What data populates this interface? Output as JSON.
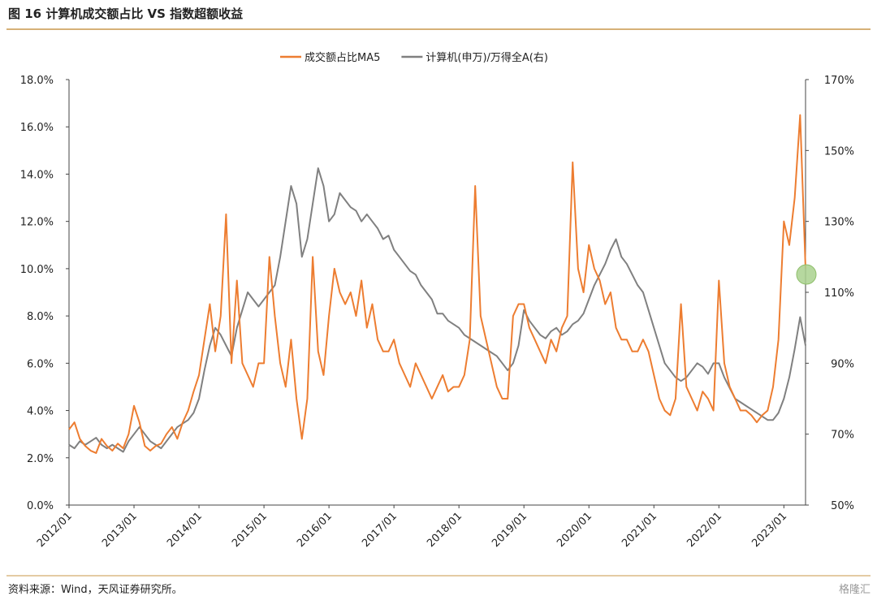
{
  "chart_data": {
    "type": "line",
    "title": "图 16 计算机成交额占比 VS 指数超额收益",
    "source": "资料来源：Wind，天风证券研究所。",
    "watermark": "格隆汇",
    "categories": [
      "2012/01",
      null,
      null,
      null,
      null,
      null,
      null,
      null,
      null,
      null,
      null,
      null,
      "2013/01",
      null,
      null,
      null,
      null,
      null,
      null,
      null,
      null,
      null,
      null,
      null,
      "2014/01",
      null,
      null,
      null,
      null,
      null,
      null,
      null,
      null,
      null,
      null,
      null,
      "2015/01",
      null,
      null,
      null,
      null,
      null,
      null,
      null,
      null,
      null,
      null,
      null,
      "2016/01",
      null,
      null,
      null,
      null,
      null,
      null,
      null,
      null,
      null,
      null,
      null,
      "2017/01",
      null,
      null,
      null,
      null,
      null,
      null,
      null,
      null,
      null,
      null,
      null,
      "2018/01",
      null,
      null,
      null,
      null,
      null,
      null,
      null,
      null,
      null,
      null,
      null,
      "2019/01",
      null,
      null,
      null,
      null,
      null,
      null,
      null,
      null,
      null,
      null,
      null,
      "2020/01",
      null,
      null,
      null,
      null,
      null,
      null,
      null,
      null,
      null,
      null,
      null,
      "2021/01",
      null,
      null,
      null,
      null,
      null,
      null,
      null,
      null,
      null,
      null,
      null,
      "2022/01",
      null,
      null,
      null,
      null,
      null,
      null,
      null,
      null,
      null,
      null,
      null,
      "2023/01",
      null,
      null,
      null,
      null
    ],
    "series": [
      {
        "name": "成交额占比MA5",
        "color": "#ed7d31",
        "values": [
          3.2,
          3.5,
          2.8,
          2.5,
          2.3,
          2.2,
          2.8,
          2.5,
          2.3,
          2.6,
          2.4,
          3.0,
          4.2,
          3.5,
          2.5,
          2.3,
          2.5,
          2.6,
          3.0,
          3.3,
          2.8,
          3.5,
          4.0,
          4.8,
          5.5,
          7.0,
          8.5,
          6.5,
          8.0,
          12.3,
          6.0,
          9.5,
          6.0,
          5.5,
          5.0,
          6.0,
          6.0,
          10.5,
          8.0,
          6.0,
          5.0,
          7.0,
          4.5,
          2.8,
          4.5,
          10.5,
          6.5,
          5.5,
          8.0,
          10.0,
          9.0,
          8.5,
          9.0,
          8.0,
          9.5,
          7.5,
          8.5,
          7.0,
          6.5,
          6.5,
          7.0,
          6.0,
          5.5,
          5.0,
          6.0,
          5.5,
          5.0,
          4.5,
          5.0,
          5.5,
          4.8,
          5.0,
          5.0,
          5.5,
          7.0,
          13.5,
          8.0,
          7.0,
          6.0,
          5.0,
          4.5,
          4.5,
          8.0,
          8.5,
          8.5,
          7.5,
          7.0,
          6.5,
          6.0,
          7.0,
          6.5,
          7.5,
          8.0,
          14.5,
          10.0,
          9.0,
          11.0,
          10.0,
          9.5,
          8.5,
          9.0,
          7.5,
          7.0,
          7.0,
          6.5,
          6.5,
          7.0,
          6.5,
          5.5,
          4.5,
          4.0,
          3.8,
          4.5,
          8.5,
          5.0,
          4.5,
          4.0,
          4.8,
          4.5,
          4.0,
          9.5,
          6.0,
          5.0,
          4.5,
          4.0,
          4.0,
          3.8,
          3.5,
          3.8,
          4.0,
          5.0,
          7.0,
          12.0,
          11.0,
          13.0,
          16.5,
          10.0
        ]
      },
      {
        "name": "计算机(申万)/万得全A(右)",
        "color": "#808080",
        "axis": "y2",
        "values": [
          67,
          66,
          68,
          67,
          68,
          69,
          67,
          66,
          67,
          66,
          65,
          68,
          70,
          72,
          70,
          68,
          67,
          66,
          68,
          70,
          72,
          73,
          74,
          76,
          80,
          88,
          95,
          100,
          98,
          95,
          92,
          100,
          105,
          110,
          108,
          106,
          108,
          110,
          112,
          120,
          130,
          140,
          135,
          120,
          125,
          135,
          145,
          140,
          130,
          132,
          138,
          136,
          134,
          133,
          130,
          132,
          130,
          128,
          125,
          126,
          122,
          120,
          118,
          116,
          115,
          112,
          110,
          108,
          104,
          104,
          102,
          101,
          100,
          98,
          97,
          96,
          95,
          94,
          93,
          92,
          90,
          88,
          90,
          95,
          105,
          102,
          100,
          98,
          97,
          99,
          100,
          98,
          99,
          101,
          102,
          104,
          108,
          112,
          115,
          118,
          122,
          125,
          120,
          118,
          115,
          112,
          110,
          105,
          100,
          95,
          90,
          88,
          86,
          85,
          86,
          88,
          90,
          89,
          87,
          90,
          90,
          86,
          83,
          80,
          79,
          78,
          77,
          76,
          75,
          74,
          74,
          76,
          80,
          86,
          94,
          103,
          95
        ]
      }
    ],
    "ylim": [
      0,
      18
    ],
    "yticks": [
      {
        "value": 0,
        "label": "0.0%"
      },
      {
        "value": 2,
        "label": "2.0%"
      },
      {
        "value": 4,
        "label": "4.0%"
      },
      {
        "value": 6,
        "label": "6.0%"
      },
      {
        "value": 8,
        "label": "8.0%"
      },
      {
        "value": 10,
        "label": "10.0%"
      },
      {
        "value": 12,
        "label": "12.0%"
      },
      {
        "value": 14,
        "label": "14.0%"
      },
      {
        "value": 16,
        "label": "16.0%"
      },
      {
        "value": 18,
        "label": "18.0%"
      }
    ],
    "y2lim": [
      50,
      170
    ],
    "y2ticks": [
      {
        "value": 50,
        "label": "50%"
      },
      {
        "value": 70,
        "label": "70%"
      },
      {
        "value": 90,
        "label": "90%"
      },
      {
        "value": 110,
        "label": "110%"
      },
      {
        "value": 130,
        "label": "130%"
      },
      {
        "value": 150,
        "label": "150%"
      },
      {
        "value": 170,
        "label": "170%"
      }
    ]
  }
}
